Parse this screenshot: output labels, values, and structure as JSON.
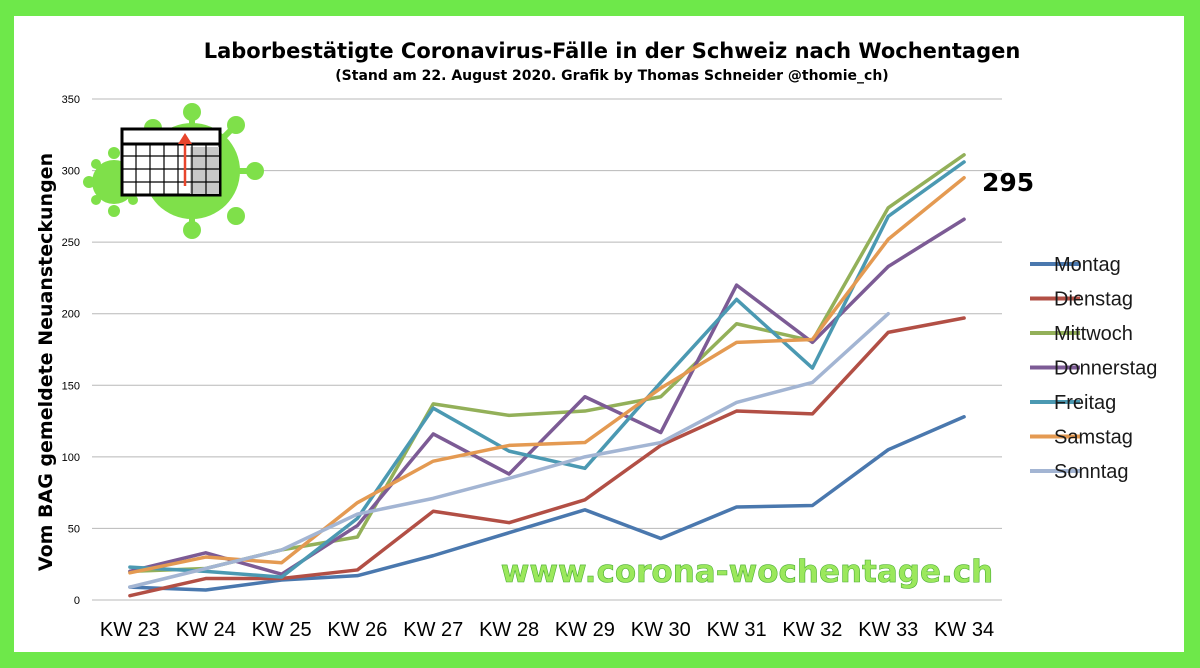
{
  "chart_data": {
    "type": "line",
    "title": "Laborbestätigte Coronavirus-Fälle in der Schweiz nach Wochentagen",
    "subtitle": "(Stand am 22. August 2020. Grafik by Thomas Schneider @thomie_ch)",
    "xlabel": "",
    "ylabel": "Vom BAG gemeldete Neuansteckungen",
    "ylim": [
      0,
      350
    ],
    "yticks": [
      0,
      50,
      100,
      150,
      200,
      250,
      300,
      350
    ],
    "grid": true,
    "legend_position": "right",
    "categories": [
      "KW 23",
      "KW 24",
      "KW 25",
      "KW 26",
      "KW 27",
      "KW 28",
      "KW 29",
      "KW 30",
      "KW 31",
      "KW 32",
      "KW 33",
      "KW 34"
    ],
    "series": [
      {
        "name": "Montag",
        "color": "#4a78ae",
        "values": [
          9,
          7,
          14,
          17,
          31,
          47,
          63,
          43,
          65,
          66,
          105,
          128
        ]
      },
      {
        "name": "Dienstag",
        "color": "#b24f45",
        "values": [
          3,
          15,
          15,
          21,
          62,
          54,
          70,
          108,
          132,
          130,
          187,
          197
        ]
      },
      {
        "name": "Mittwoch",
        "color": "#93b059",
        "values": [
          20,
          22,
          35,
          44,
          137,
          129,
          132,
          142,
          193,
          181,
          274,
          311
        ]
      },
      {
        "name": "Donnerstag",
        "color": "#7c5b95",
        "values": [
          20,
          33,
          18,
          52,
          116,
          88,
          142,
          117,
          220,
          180,
          233,
          266
        ]
      },
      {
        "name": "Freitag",
        "color": "#4b99b2",
        "values": [
          23,
          20,
          16,
          57,
          134,
          104,
          92,
          152,
          210,
          162,
          268,
          306
        ]
      },
      {
        "name": "Samstag",
        "color": "#e49a52",
        "values": [
          19,
          30,
          26,
          68,
          97,
          108,
          110,
          148,
          180,
          182,
          252,
          295
        ]
      },
      {
        "name": "Sonntag",
        "color": "#a3b5d3",
        "values": [
          9,
          22,
          35,
          60,
          71,
          85,
          100,
          110,
          138,
          152,
          200,
          null
        ]
      }
    ],
    "annotations": [
      {
        "text": "295",
        "series": "Samstag",
        "category": "KW 34"
      },
      {
        "text": "www.corona-wochentage.ch"
      }
    ]
  }
}
